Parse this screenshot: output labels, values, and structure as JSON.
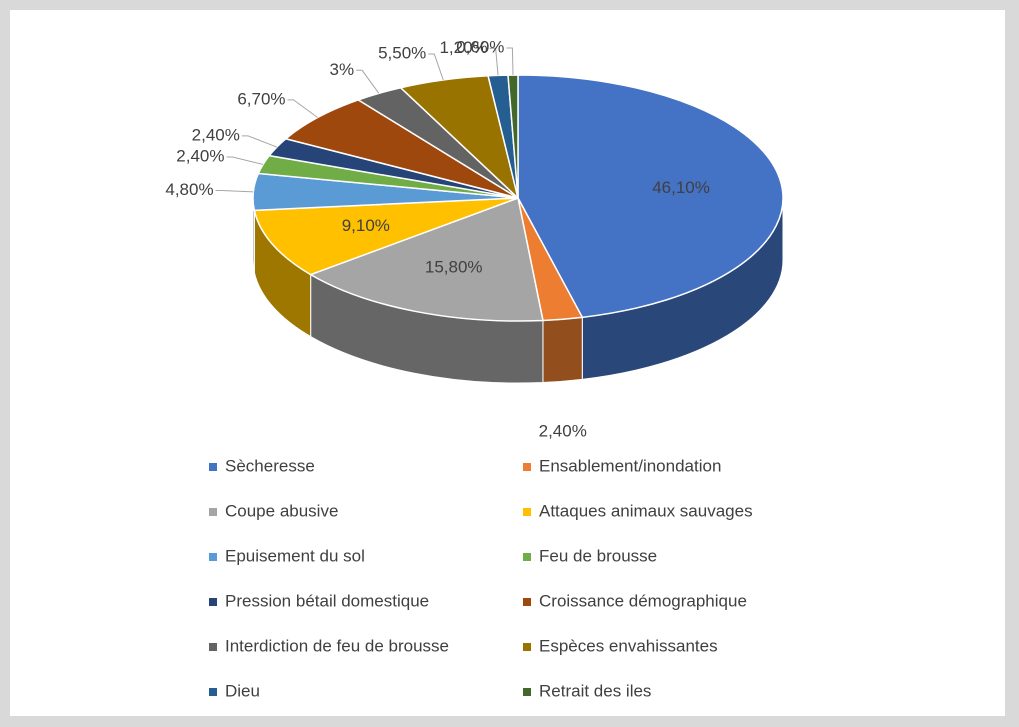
{
  "chart_data": {
    "type": "pie3d",
    "categories": [
      "Sècheresse",
      "Ensablement/inondation",
      "Coupe abusive",
      "Attaques animaux sauvages",
      "Epuisement du sol",
      "Feu de brousse",
      "Pression bétail domestique",
      "Croissance démographique",
      "Interdiction de feu de brousse",
      "Espèces envahissantes",
      "Dieu",
      "Retrait des iles"
    ],
    "values": [
      46.1,
      2.4,
      15.8,
      9.1,
      4.8,
      2.4,
      2.4,
      6.7,
      3,
      5.5,
      1.2,
      0.6
    ],
    "value_labels": [
      "46,10%",
      "2,40%",
      "15,80%",
      "9,10%",
      "4,80%",
      "2,40%",
      "2,40%",
      "6,70%",
      "3%",
      "5,50%",
      "1,20%",
      "0,60%"
    ],
    "colors": [
      "#4472c4",
      "#ed7d31",
      "#a5a5a5",
      "#ffc000",
      "#5b9bd5",
      "#70ad47",
      "#264478",
      "#9e480e",
      "#636363",
      "#997300",
      "#255e91",
      "#43682b"
    ],
    "legend": "bottom"
  }
}
